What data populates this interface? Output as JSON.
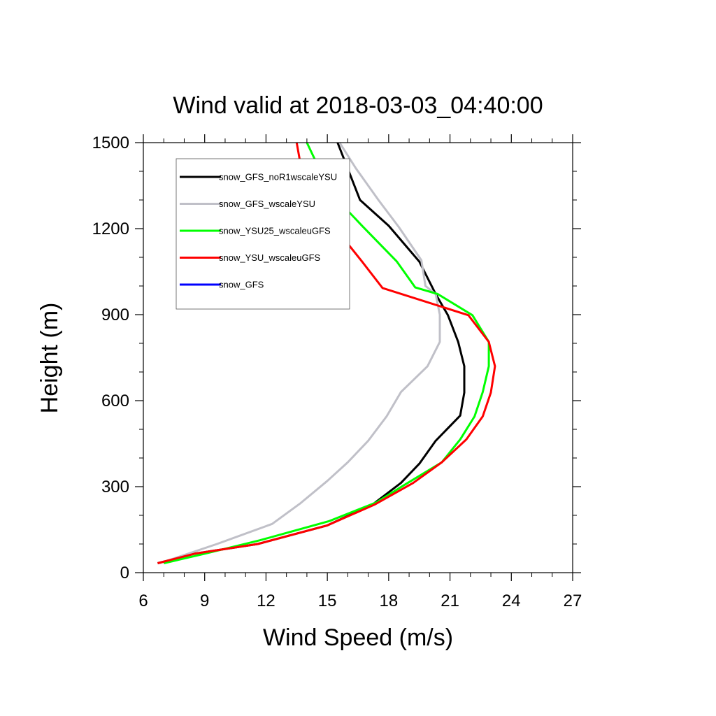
{
  "chart_data": {
    "type": "line",
    "title": "Wind valid at 2018-03-03_04:40:00",
    "xlabel": "Wind Speed (m/s)",
    "ylabel": "Height (m)",
    "xlim": [
      6,
      27
    ],
    "ylim": [
      0,
      1500
    ],
    "xticks": [
      6,
      9,
      12,
      15,
      18,
      21,
      24,
      27
    ],
    "yticks": [
      0,
      300,
      600,
      900,
      1200,
      1500
    ],
    "x_minor_step": 1,
    "y_minor_step": 100,
    "grid": false,
    "legend_position": "top-left",
    "series": [
      {
        "name": "snow_GFS_noR1wscaleYSU",
        "color": "#000000",
        "points": [
          [
            6.7,
            33
          ],
          [
            8.5,
            66
          ],
          [
            11.6,
            100
          ],
          [
            15.0,
            165
          ],
          [
            17.2,
            237
          ],
          [
            18.6,
            313
          ],
          [
            19.5,
            380
          ],
          [
            20.3,
            460
          ],
          [
            21.5,
            548
          ],
          [
            21.7,
            628
          ],
          [
            21.7,
            720
          ],
          [
            21.4,
            805
          ],
          [
            20.9,
            898
          ],
          [
            20.3,
            972
          ],
          [
            19.5,
            1085
          ],
          [
            18.0,
            1210
          ],
          [
            16.6,
            1300
          ],
          [
            15.5,
            1500
          ]
        ]
      },
      {
        "name": "snow_GFS_wscaleYSU",
        "color": "#c0c0c8",
        "points": [
          [
            6.8,
            33
          ],
          [
            9.6,
            100
          ],
          [
            12.3,
            170
          ],
          [
            13.7,
            243
          ],
          [
            15.0,
            320
          ],
          [
            16.0,
            385
          ],
          [
            17.0,
            460
          ],
          [
            17.9,
            545
          ],
          [
            18.6,
            630
          ],
          [
            19.9,
            720
          ],
          [
            20.5,
            805
          ],
          [
            20.5,
            900
          ],
          [
            20.3,
            972
          ],
          [
            19.8,
            1000
          ],
          [
            19.6,
            1090
          ],
          [
            18.5,
            1205
          ],
          [
            17.5,
            1300
          ],
          [
            16.4,
            1410
          ],
          [
            15.6,
            1500
          ]
        ]
      },
      {
        "name": "snow_YSU25_wscaleuGFS",
        "color": "#00ff00",
        "points": [
          [
            7.0,
            33
          ],
          [
            9.0,
            66
          ],
          [
            11.7,
            113
          ],
          [
            15.1,
            180
          ],
          [
            17.4,
            245
          ],
          [
            18.7,
            303
          ],
          [
            20.6,
            385
          ],
          [
            21.5,
            465
          ],
          [
            22.2,
            545
          ],
          [
            22.6,
            630
          ],
          [
            22.9,
            720
          ],
          [
            22.9,
            805
          ],
          [
            22.1,
            898
          ],
          [
            20.4,
            972
          ],
          [
            19.3,
            995
          ],
          [
            18.4,
            1085
          ],
          [
            16.7,
            1210
          ],
          [
            15.5,
            1300
          ],
          [
            14.6,
            1410
          ],
          [
            14.0,
            1500
          ]
        ]
      },
      {
        "name": "snow_YSU_wscaleuGFS",
        "color": "#ff0000",
        "points": [
          [
            6.7,
            33
          ],
          [
            8.5,
            66
          ],
          [
            11.6,
            100
          ],
          [
            15.0,
            165
          ],
          [
            17.3,
            237
          ],
          [
            19.2,
            313
          ],
          [
            20.6,
            385
          ],
          [
            21.8,
            465
          ],
          [
            22.6,
            545
          ],
          [
            23.0,
            628
          ],
          [
            23.2,
            720
          ],
          [
            22.9,
            805
          ],
          [
            21.9,
            898
          ],
          [
            17.7,
            993
          ],
          [
            16.7,
            1085
          ],
          [
            15.3,
            1210
          ],
          [
            14.0,
            1300
          ],
          [
            13.8,
            1380
          ],
          [
            13.5,
            1500
          ]
        ]
      },
      {
        "name": "snow_GFS",
        "color": "#0000ff",
        "points": []
      }
    ]
  }
}
